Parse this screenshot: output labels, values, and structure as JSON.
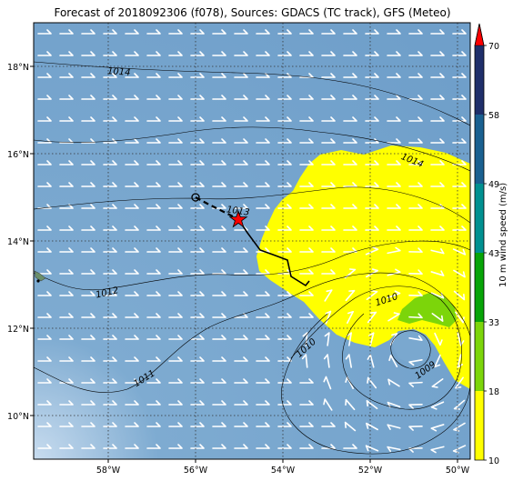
{
  "title": "Forecast of 2018092306 (f078), Sources: GDACS (TC track), GFS (Meteo)",
  "map": {
    "x_ticks": [
      "58°W",
      "56°W",
      "54°W",
      "52°W",
      "50°W"
    ],
    "y_ticks": [
      "18°N",
      "16°N",
      "14°N",
      "12°N",
      "10°N"
    ],
    "lon_range": [
      -59.7,
      -49.7
    ],
    "lat_range": [
      9.0,
      19.0
    ],
    "ocean_color": "#7aa8cf",
    "wind_color": "#ffffff",
    "grid_color": "#333333"
  },
  "isobars": [
    {
      "label": "1014",
      "value": 1014
    },
    {
      "label": "1014",
      "value": 1014
    },
    {
      "label": "1013",
      "value": 1013
    },
    {
      "label": "1012",
      "value": 1012
    },
    {
      "label": "1011",
      "value": 1011
    },
    {
      "label": "1010",
      "value": 1010
    },
    {
      "label": "1010",
      "value": 1010
    },
    {
      "label": "1009",
      "value": 1009
    }
  ],
  "storm": {
    "current_position": {
      "lon": -55.0,
      "lat": 14.5
    },
    "marker_color": "#ff0000",
    "past_track_style": "dashed",
    "forecast_track_style": "solid"
  },
  "colorbar": {
    "label": "10 m wind speed (m/s)",
    "ticks": [
      "10",
      "18",
      "33",
      "43",
      "49",
      "58",
      "70"
    ],
    "colors": [
      "#ffff00",
      "#7cd50a",
      "#08a408",
      "#009090",
      "#1a6090",
      "#1f2f6a"
    ],
    "extend_color": "#ff0000"
  }
}
